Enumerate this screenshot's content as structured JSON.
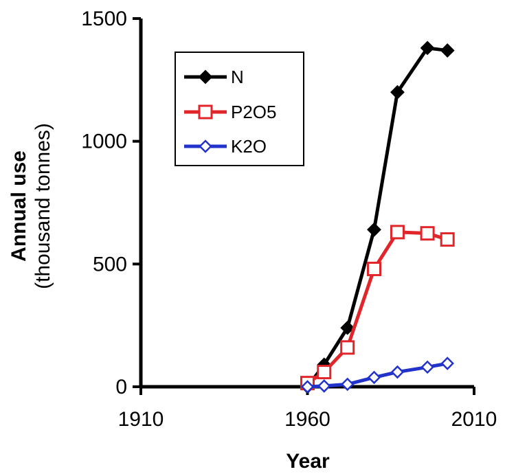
{
  "chart_data": {
    "type": "line",
    "title": "",
    "xlabel": "Year",
    "ylabel": [
      "Annual use",
      "(thousand tonnes)"
    ],
    "xlim": [
      1910,
      2010
    ],
    "ylim": [
      0,
      1500
    ],
    "xticks": [
      "1910",
      "1960",
      "2010"
    ],
    "yticks": [
      "0",
      "500",
      "1000",
      "1500"
    ],
    "grid": false,
    "legend_position": "top-left",
    "series": [
      {
        "name": "N",
        "color": "#000000",
        "marker": "filled-diamond",
        "x": [
          1960,
          1965,
          1972,
          1980,
          1987,
          1996,
          2002
        ],
        "y": [
          0,
          90,
          240,
          640,
          1200,
          1380,
          1370
        ]
      },
      {
        "name": "P2O5",
        "color": "#e0262b",
        "marker": "open-square",
        "x": [
          1960,
          1965,
          1972,
          1980,
          1987,
          1996,
          2002
        ],
        "y": [
          15,
          60,
          160,
          480,
          630,
          625,
          600
        ]
      },
      {
        "name": "K2O",
        "color": "#2233cc",
        "marker": "open-diamond",
        "x": [
          1960,
          1965,
          1972,
          1980,
          1987,
          1996,
          2002
        ],
        "y": [
          0,
          3,
          10,
          38,
          60,
          80,
          95
        ]
      }
    ]
  }
}
